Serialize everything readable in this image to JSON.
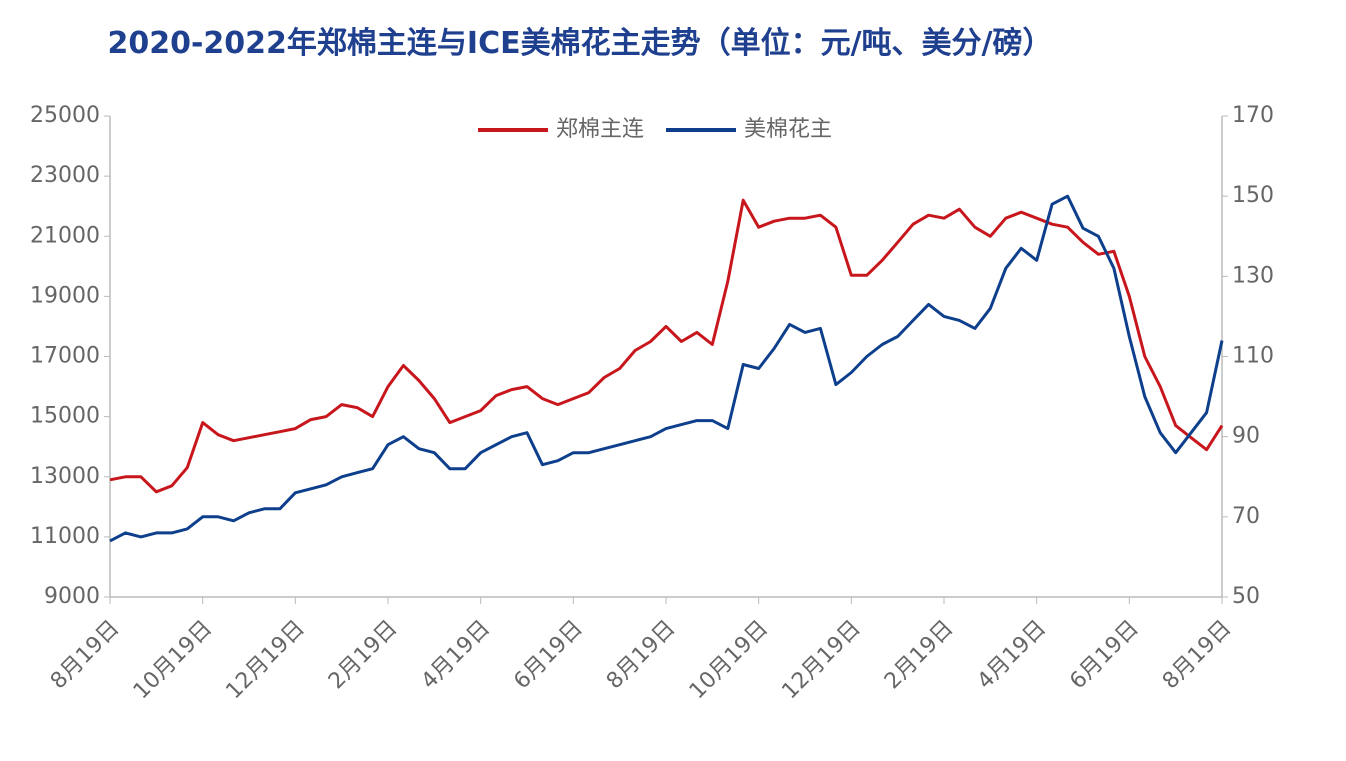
{
  "chart_data": {
    "type": "line",
    "title": "2020-2022年郑棉主连与ICE美棉花主走势（单位：元/吨、美分/磅）",
    "categories": [
      "8月19日",
      null,
      null,
      null,
      null,
      null,
      "10月19日",
      null,
      null,
      null,
      null,
      null,
      "12月19日",
      null,
      null,
      null,
      null,
      null,
      "2月19日",
      null,
      null,
      null,
      null,
      null,
      "4月19日",
      null,
      null,
      null,
      null,
      null,
      "6月19日",
      null,
      null,
      null,
      null,
      null,
      "8月19日",
      null,
      null,
      null,
      null,
      null,
      "10月19日",
      null,
      null,
      null,
      null,
      null,
      "12月19日",
      null,
      null,
      null,
      null,
      null,
      "2月19日",
      null,
      null,
      null,
      null,
      null,
      "4月19日",
      null,
      null,
      null,
      null,
      null,
      "6月19日",
      null,
      null,
      null,
      null,
      null,
      "8月19日"
    ],
    "series": [
      {
        "name": "郑棉主连",
        "color": "#c8161d",
        "values": [
          12900,
          13000,
          13000,
          12500,
          12700,
          13300,
          14800,
          14400,
          14200,
          14300,
          14400,
          14500,
          14600,
          14900,
          15000,
          15400,
          15300,
          15000,
          16000,
          16700,
          16200,
          15600,
          14800,
          15000,
          15200,
          15700,
          15900,
          16000,
          15600,
          15400,
          15600,
          15800,
          16300,
          16600,
          17200,
          17500,
          18000,
          17500,
          17800,
          17400,
          19500,
          22200,
          21300,
          21500,
          21600,
          21600,
          21700,
          21300,
          19700,
          19700,
          20200,
          20800,
          21400,
          21700,
          21600,
          21900,
          21300,
          21000,
          21600,
          21800,
          21600,
          21400,
          21300,
          20800,
          20400,
          20500,
          19000,
          17000,
          16000,
          14700,
          14300,
          13900,
          14700
        ]
      },
      {
        "name": "美棉花主",
        "color": "#0e3f8c",
        "axis": "y2",
        "values": [
          64,
          66,
          65,
          66,
          66,
          67,
          70,
          70,
          69,
          71,
          72,
          72,
          76,
          77,
          78,
          80,
          81,
          82,
          88,
          90,
          87,
          86,
          82,
          82,
          86,
          88,
          90,
          91,
          83,
          84,
          86,
          86,
          87,
          88,
          89,
          90,
          92,
          93,
          94,
          94,
          92,
          108,
          107,
          112,
          118,
          116,
          117,
          103,
          106,
          110,
          113,
          115,
          119,
          123,
          120,
          119,
          117,
          122,
          132,
          137,
          134,
          148,
          150,
          142,
          140,
          132,
          115,
          100,
          91,
          86,
          91,
          96,
          114
        ]
      }
    ],
    "ylim": [
      9000,
      25000
    ],
    "yticks": [
      9000,
      11000,
      13000,
      15000,
      17000,
      19000,
      21000,
      23000,
      25000
    ],
    "y2lim": [
      50,
      170
    ],
    "y2ticks": [
      50,
      70,
      90,
      110,
      130,
      150,
      170
    ],
    "legend": "top"
  }
}
